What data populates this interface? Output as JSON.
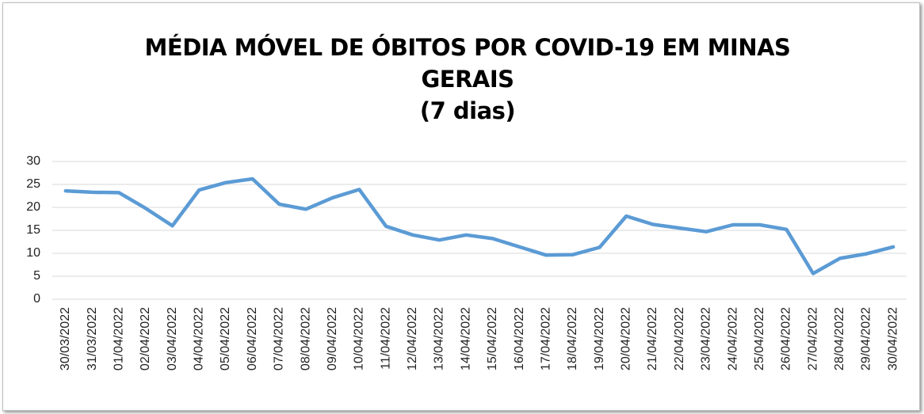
{
  "chart_data": {
    "type": "line",
    "title": "MÉDIA MÓVEL DE ÓBITOS POR COVID-19 EM MINAS GERAIS\n(7 dias)",
    "categories": [
      "30/03/2022",
      "31/03/2022",
      "01/04/2022",
      "02/04/2022",
      "03/04/2022",
      "04/04/2022",
      "05/04/2022",
      "06/04/2022",
      "07/04/2022",
      "08/04/2022",
      "09/04/2022",
      "10/04/2022",
      "11/04/2022",
      "12/04/2022",
      "13/04/2022",
      "14/04/2022",
      "15/04/2022",
      "16/04/2022",
      "17/04/2022",
      "18/04/2022",
      "19/04/2022",
      "20/04/2022",
      "21/04/2022",
      "22/04/2022",
      "23/04/2022",
      "24/04/2022",
      "25/04/2022",
      "26/04/2022",
      "27/04/2022",
      "28/04/2022",
      "29/04/2022",
      "30/04/2022"
    ],
    "values": [
      23.6,
      23.3,
      23.2,
      19.8,
      16.0,
      23.8,
      25.4,
      26.2,
      20.7,
      19.6,
      22.1,
      23.9,
      15.9,
      14.0,
      12.9,
      14.0,
      13.2,
      11.4,
      9.6,
      9.7,
      11.3,
      18.1,
      16.3,
      15.5,
      14.7,
      16.2,
      16.2,
      15.2,
      5.6,
      8.9,
      9.9,
      11.4
    ],
    "color": "#5b9bd5",
    "ylim": [
      0,
      30
    ],
    "yticks": [
      0,
      5,
      10,
      15,
      20,
      25,
      30
    ],
    "grid": true
  }
}
